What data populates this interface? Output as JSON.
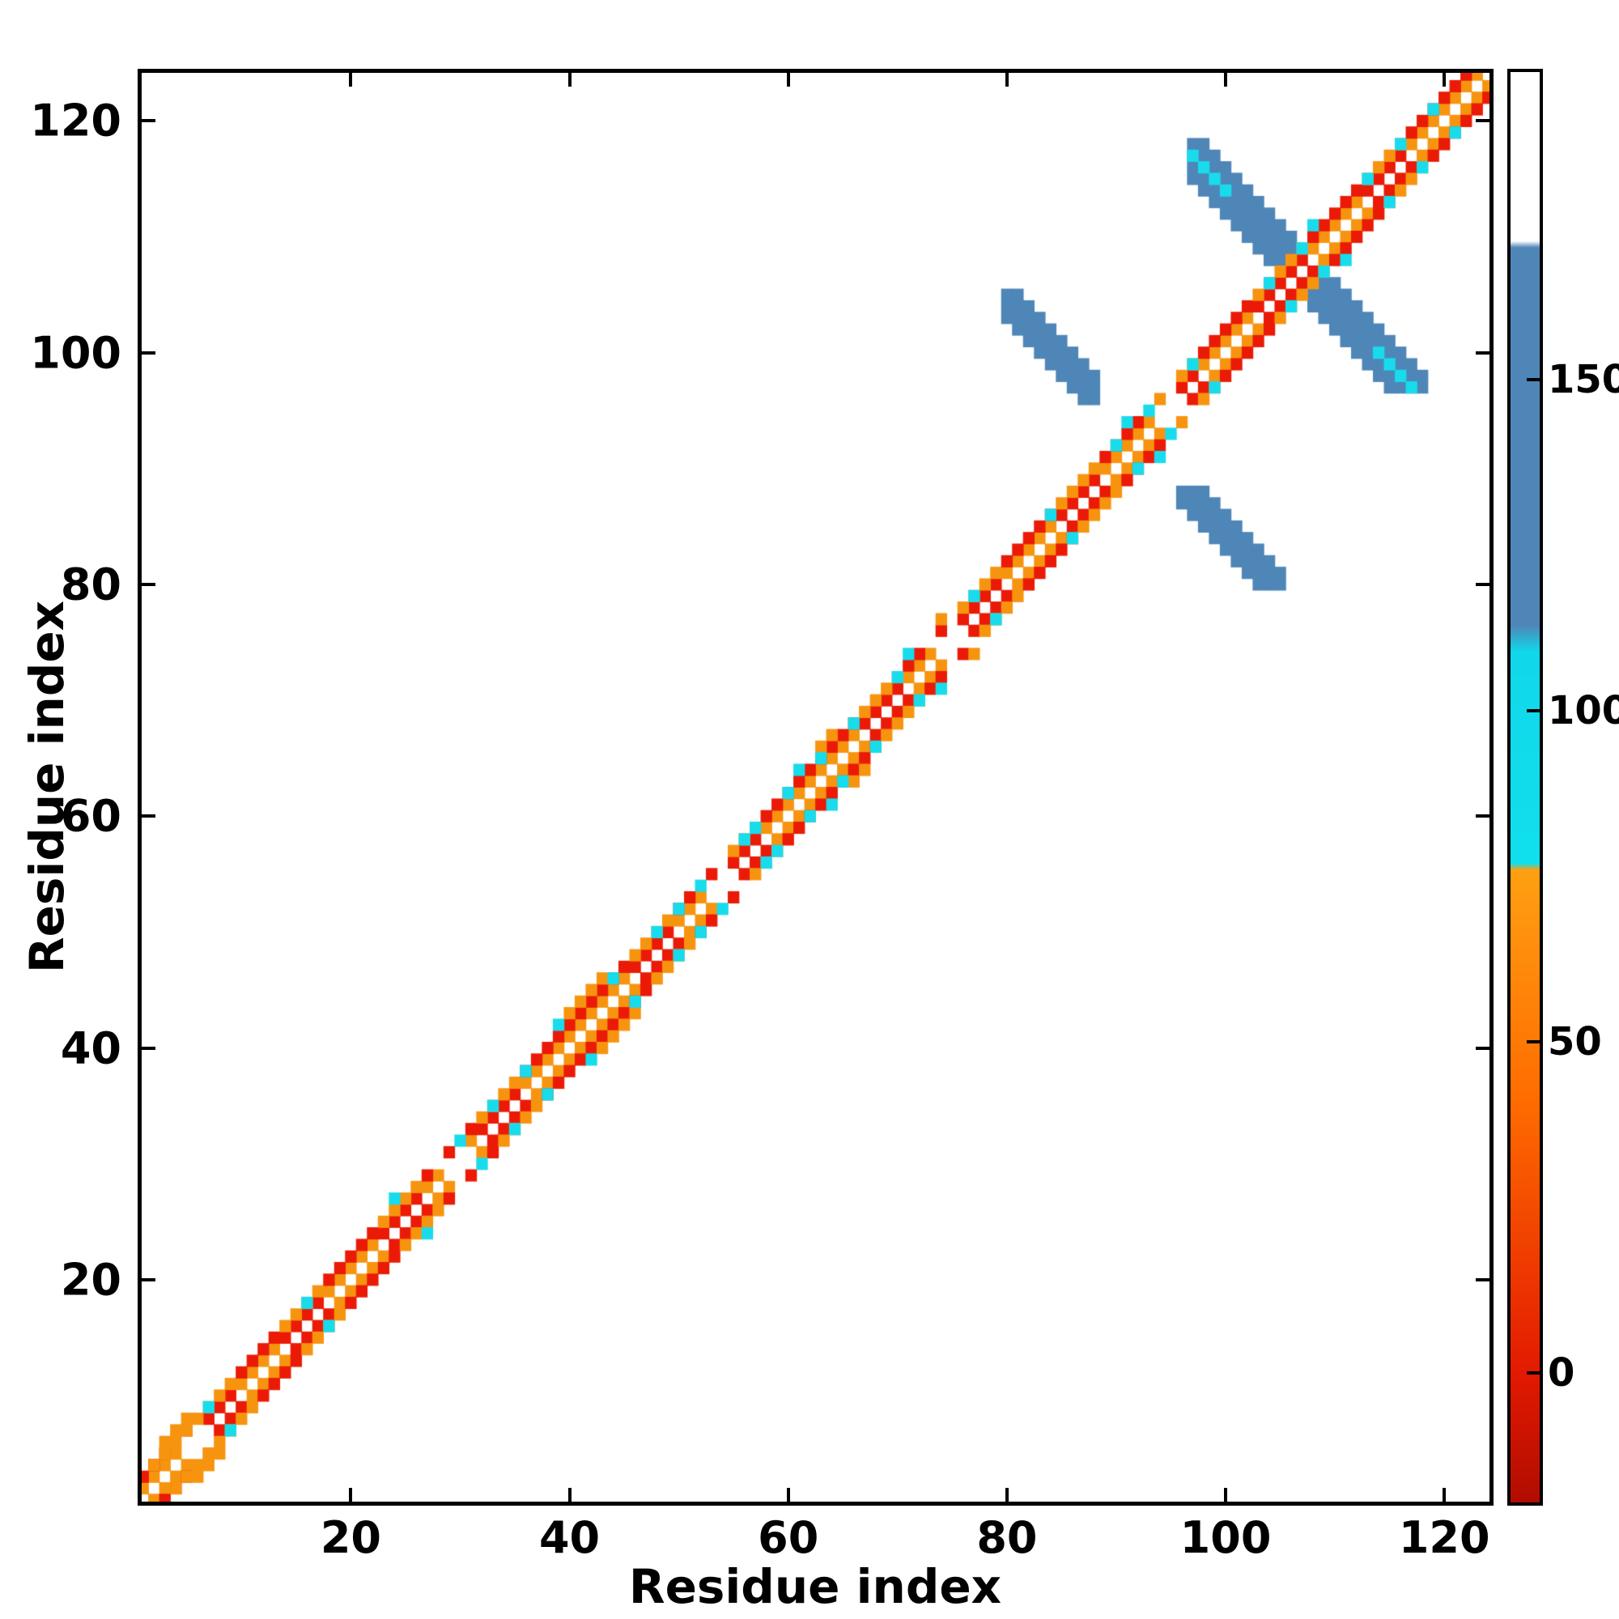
{
  "figure": {
    "background": "#ffffff"
  },
  "chart_data": {
    "type": "heatmap",
    "title": "",
    "xlabel": "Residue index",
    "ylabel": "Residue index",
    "n_residues": 124,
    "x_range": [
      1,
      124
    ],
    "y_range": [
      1,
      124
    ],
    "x_ticks": [
      20,
      40,
      60,
      80,
      100,
      120
    ],
    "y_ticks": [
      20,
      40,
      60,
      80,
      100,
      120
    ],
    "grid": false,
    "palette": {
      "red": "#ea1a06",
      "orange": "#f7940f",
      "cyan": "#18dcec",
      "steelblue": "#4f86b8",
      "background": "#ffffff"
    },
    "value_of": {
      "red": 10,
      "orange": 55,
      "cyan": 92,
      "steelblue": 150,
      "background_masked": 197
    },
    "colorbar": {
      "ticks": [
        0,
        50,
        100,
        150
      ],
      "vmin": -20,
      "vmax": 197,
      "stops": [
        [
          -20,
          "#b00c00"
        ],
        [
          0,
          "#e31a00"
        ],
        [
          40,
          "#ff6a00"
        ],
        [
          76,
          "#ffa012"
        ],
        [
          77,
          "#10e0ee"
        ],
        [
          109,
          "#10d8ea"
        ],
        [
          113,
          "#4f86b8"
        ],
        [
          170,
          "#4f86b8"
        ],
        [
          171,
          "#ffffff"
        ],
        [
          197,
          "#ffffff"
        ]
      ]
    },
    "diagonal_band": {
      "description": "near-diagonal contacts: offset-1 and offset-2 cells, diagonal itself is white/masked",
      "offset1_runs": [
        [
          1,
          5,
          "orange"
        ],
        [
          6,
          9,
          "red"
        ],
        [
          10,
          13,
          "orange"
        ],
        [
          14,
          17,
          "red"
        ],
        [
          18,
          22,
          "orange"
        ],
        [
          23,
          26,
          "red"
        ],
        [
          27,
          31,
          "orange"
        ],
        [
          32,
          35,
          "red"
        ],
        [
          36,
          45,
          "orange"
        ],
        [
          46,
          49,
          "red"
        ],
        [
          50,
          53,
          "orange"
        ],
        [
          54,
          57,
          "red"
        ],
        [
          58,
          66,
          "orange"
        ],
        [
          67,
          70,
          "red"
        ],
        [
          71,
          75,
          "orange"
        ],
        [
          76,
          79,
          "red"
        ],
        [
          80,
          84,
          "orange"
        ],
        [
          85,
          88,
          "red"
        ],
        [
          89,
          93,
          "orange"
        ],
        [
          94,
          97,
          "red"
        ],
        [
          98,
          102,
          "orange"
        ],
        [
          103,
          107,
          "red"
        ],
        [
          108,
          112,
          "orange"
        ],
        [
          113,
          116,
          "red"
        ],
        [
          117,
          123,
          "orange"
        ]
      ],
      "offset2_rule": "opposite",
      "gaps": [
        6,
        30,
        54,
        75,
        95
      ],
      "cyan_specks": [
        [
          7,
          9
        ],
        [
          16,
          18
        ],
        [
          24,
          27
        ],
        [
          30,
          32
        ],
        [
          33,
          35
        ],
        [
          36,
          38
        ],
        [
          39,
          42
        ],
        [
          44,
          46
        ],
        [
          48,
          50
        ],
        [
          50,
          52
        ],
        [
          52,
          54
        ],
        [
          56,
          58
        ],
        [
          57,
          59
        ],
        [
          60,
          62
        ],
        [
          61,
          64
        ],
        [
          63,
          65
        ],
        [
          66,
          68
        ],
        [
          70,
          72
        ],
        [
          71,
          74
        ],
        [
          77,
          79
        ],
        [
          84,
          86
        ],
        [
          90,
          92
        ],
        [
          91,
          94
        ],
        [
          93,
          95
        ],
        [
          97,
          99
        ],
        [
          104,
          106
        ],
        [
          107,
          109
        ],
        [
          108,
          111
        ],
        [
          113,
          115
        ],
        [
          116,
          118
        ],
        [
          119,
          121
        ]
      ],
      "extra_orange": [
        [
          2,
          4
        ],
        [
          3,
          5
        ],
        [
          3,
          6
        ],
        [
          4,
          6
        ],
        [
          4,
          7
        ],
        [
          5,
          7
        ],
        [
          5,
          8
        ],
        [
          6,
          8
        ],
        [
          40,
          43
        ],
        [
          41,
          44
        ],
        [
          42,
          45
        ],
        [
          43,
          46
        ],
        [
          63,
          66
        ],
        [
          64,
          67
        ],
        [
          74,
          77
        ]
      ]
    },
    "blue_features": [
      {
        "name": "antidiagonal-arm",
        "i_range": [
          97,
          118
        ],
        "j_range": [
          97,
          118
        ],
        "sum_range": [
          212,
          216
        ],
        "min_offset": 3,
        "color": "steelblue"
      },
      {
        "name": "contact-blob-upper",
        "i_range": [
          80,
          88
        ],
        "j_range": [
          96,
          105
        ],
        "sum_range": [
          183,
          186
        ],
        "min_offset": 0,
        "color": "steelblue"
      },
      {
        "name": "contact-blob-lower",
        "i_range": [
          96,
          105
        ],
        "j_range": [
          80,
          88
        ],
        "sum_range": [
          183,
          186
        ],
        "min_offset": 0,
        "color": "steelblue"
      }
    ],
    "cyan_tips": [
      [
        114,
        100
      ],
      [
        115,
        99
      ],
      [
        116,
        98
      ],
      [
        117,
        97
      ],
      [
        100,
        114
      ],
      [
        99,
        115
      ],
      [
        98,
        116
      ],
      [
        97,
        117
      ]
    ]
  }
}
